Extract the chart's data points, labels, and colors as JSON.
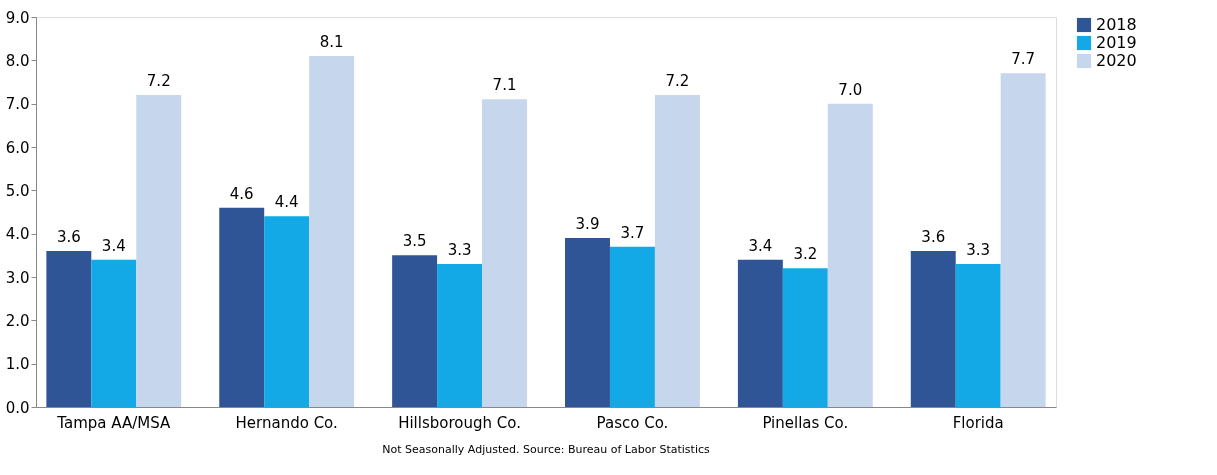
{
  "chart_data": {
    "type": "bar",
    "categories": [
      "Tampa AA/MSA",
      "Hernando Co.",
      "Hillsborough Co.",
      "Pasco Co.",
      "Pinellas Co.",
      "Florida"
    ],
    "series": [
      {
        "name": "2018",
        "color": "#2f5597",
        "values": [
          3.6,
          4.6,
          3.5,
          3.9,
          3.4,
          3.6
        ],
        "value_labels": [
          "3.6",
          "4.6",
          "3.5",
          "3.9",
          "3.4",
          "3.6"
        ]
      },
      {
        "name": "2019",
        "color": "#12a9e6",
        "values": [
          3.4,
          4.4,
          3.3,
          3.7,
          3.2,
          3.3
        ],
        "value_labels": [
          "3.4",
          "4.4",
          "3.3",
          "3.7",
          "3.2",
          "3.3"
        ]
      },
      {
        "name": "2020",
        "color": "#c6d6ec",
        "values": [
          7.2,
          8.1,
          7.1,
          7.2,
          7.0,
          7.7
        ],
        "value_labels": [
          "7.2",
          "8.1",
          "7.1",
          "7.2",
          "7.0",
          "7.7"
        ]
      }
    ],
    "ylim": [
      0,
      9
    ],
    "yticks": [
      {
        "value": 0,
        "label": "0.0"
      },
      {
        "value": 1,
        "label": "1.0"
      },
      {
        "value": 2,
        "label": "2.0"
      },
      {
        "value": 3,
        "label": "3.0"
      },
      {
        "value": 4,
        "label": "4.0"
      },
      {
        "value": 5,
        "label": "5.0"
      },
      {
        "value": 6,
        "label": "6.0"
      },
      {
        "value": 7,
        "label": "7.0"
      },
      {
        "value": 8,
        "label": "8.0"
      },
      {
        "value": 9,
        "label": "9.0"
      }
    ],
    "grid": false,
    "legend": "right",
    "annotations": [
      "Not Seasonally Adjusted.   Source: Bureau of Labor Statistics"
    ]
  }
}
